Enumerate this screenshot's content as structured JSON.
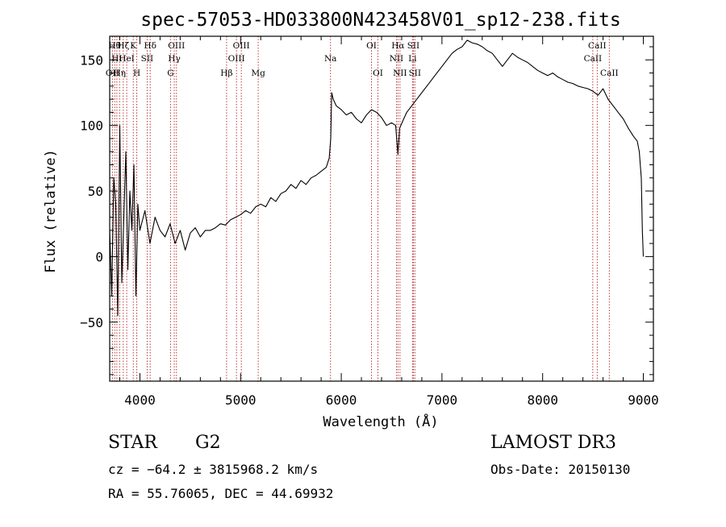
{
  "chart_data": {
    "type": "line",
    "title": "spec-57053-HD033800N423458V01_sp12-238.fits",
    "xlabel": "Wavelength (Å)",
    "ylabel": "Flux (relative)",
    "xlim": [
      3700,
      9100
    ],
    "ylim": [
      -95,
      168
    ],
    "xticks": [
      4000,
      5000,
      6000,
      7000,
      8000,
      9000
    ],
    "xtick_labels": [
      "4000",
      "5000",
      "6000",
      "7000",
      "8000",
      "9000"
    ],
    "yticks": [
      -50,
      0,
      50,
      100,
      150
    ],
    "ytick_labels": [
      "−50",
      "0",
      "50",
      "100",
      "150"
    ],
    "grid": false,
    "legend": "none",
    "series": [
      {
        "name": "flux",
        "x": [
          3700,
          3720,
          3740,
          3760,
          3780,
          3800,
          3820,
          3840,
          3860,
          3880,
          3900,
          3920,
          3940,
          3960,
          3980,
          4000,
          4050,
          4100,
          4150,
          4200,
          4250,
          4300,
          4350,
          4400,
          4450,
          4500,
          4550,
          4600,
          4650,
          4700,
          4750,
          4800,
          4850,
          4900,
          4950,
          5000,
          5050,
          5100,
          5150,
          5200,
          5250,
          5300,
          5350,
          5400,
          5450,
          5500,
          5550,
          5600,
          5650,
          5700,
          5750,
          5800,
          5850,
          5880,
          5895,
          5905,
          5920,
          5950,
          6000,
          6050,
          6100,
          6150,
          6200,
          6250,
          6300,
          6350,
          6400,
          6450,
          6500,
          6540,
          6563,
          6580,
          6620,
          6650,
          6700,
          6750,
          6800,
          6850,
          6900,
          6950,
          7000,
          7050,
          7100,
          7150,
          7200,
          7250,
          7300,
          7350,
          7400,
          7450,
          7500,
          7550,
          7600,
          7650,
          7700,
          7750,
          7800,
          7850,
          7900,
          7950,
          8000,
          8050,
          8100,
          8150,
          8200,
          8250,
          8300,
          8350,
          8400,
          8450,
          8500,
          8550,
          8600,
          8650,
          8700,
          8750,
          8800,
          8850,
          8900,
          8940,
          8960,
          8980,
          8990,
          9000
        ],
        "y": [
          20,
          -30,
          60,
          40,
          -45,
          100,
          -20,
          30,
          80,
          -10,
          50,
          20,
          70,
          -30,
          40,
          20,
          35,
          10,
          30,
          20,
          15,
          25,
          10,
          20,
          5,
          18,
          22,
          15,
          20,
          20,
          22,
          25,
          24,
          28,
          30,
          32,
          35,
          33,
          38,
          40,
          38,
          45,
          42,
          48,
          50,
          55,
          52,
          58,
          55,
          60,
          62,
          65,
          68,
          75,
          90,
          125,
          120,
          115,
          112,
          108,
          110,
          105,
          102,
          108,
          112,
          110,
          106,
          100,
          102,
          100,
          78,
          98,
          105,
          110,
          115,
          120,
          125,
          130,
          135,
          140,
          145,
          150,
          155,
          158,
          160,
          165,
          163,
          162,
          160,
          157,
          155,
          150,
          145,
          150,
          155,
          152,
          150,
          148,
          145,
          142,
          140,
          138,
          140,
          137,
          135,
          133,
          132,
          130,
          129,
          128,
          126,
          123,
          128,
          120,
          115,
          110,
          105,
          98,
          92,
          88,
          80,
          60,
          20,
          0
        ]
      }
    ],
    "lines": [
      {
        "wavelength": 3727,
        "label": "OII",
        "row": 3
      },
      {
        "wavelength": 3750,
        "label": "Hθ",
        "row": 1
      },
      {
        "wavelength": 3771,
        "label": "Hι",
        "row": 2
      },
      {
        "wavelength": 3798,
        "label": "Hη",
        "row": 3
      },
      {
        "wavelength": 3835,
        "label": "Hζ",
        "row": 1
      },
      {
        "wavelength": 3869,
        "label": "HeI",
        "row": 2
      },
      {
        "wavelength": 3934,
        "label": "K",
        "row": 1
      },
      {
        "wavelength": 3969,
        "label": "H",
        "row": 3
      },
      {
        "wavelength": 4072,
        "label": "SII",
        "row": 2
      },
      {
        "wavelength": 4102,
        "label": "Hδ",
        "row": 1
      },
      {
        "wavelength": 4304,
        "label": "G",
        "row": 3
      },
      {
        "wavelength": 4341,
        "label": "Hγ",
        "row": 2
      },
      {
        "wavelength": 4363,
        "label": "OIII",
        "row": 1
      },
      {
        "wavelength": 4861,
        "label": "Hβ",
        "row": 3
      },
      {
        "wavelength": 4959,
        "label": "OIII",
        "row": 2
      },
      {
        "wavelength": 5007,
        "label": "OIII",
        "row": 1
      },
      {
        "wavelength": 5175,
        "label": "Mg",
        "row": 3
      },
      {
        "wavelength": 5893,
        "label": "Na",
        "row": 2
      },
      {
        "wavelength": 6300,
        "label": "OI",
        "row": 1
      },
      {
        "wavelength": 6364,
        "label": "OI",
        "row": 3
      },
      {
        "wavelength": 6548,
        "label": "NII",
        "row": 2
      },
      {
        "wavelength": 6563,
        "label": "Hα",
        "row": 1
      },
      {
        "wavelength": 6583,
        "label": "NII",
        "row": 3
      },
      {
        "wavelength": 6707,
        "label": "Li",
        "row": 2
      },
      {
        "wavelength": 6716,
        "label": "SII",
        "row": 1
      },
      {
        "wavelength": 6731,
        "label": "SII",
        "row": 3
      },
      {
        "wavelength": 8498,
        "label": "CaII",
        "row": 2
      },
      {
        "wavelength": 8542,
        "label": "CaII",
        "row": 1
      },
      {
        "wavelength": 8662,
        "label": "CaII",
        "row": 3
      }
    ]
  },
  "info": {
    "object_class": "STAR",
    "subclass": "G2",
    "survey": "LAMOST DR3",
    "redshift_line": "cz = −64.2 ± 3815968.2 km/s",
    "obs_date": "Obs-Date: 20150130",
    "coords": "RA =  55.76065, DEC =  44.69932"
  },
  "colors": {
    "line_marker": "#b22222",
    "spectrum": "#000000",
    "axes": "#000000"
  }
}
